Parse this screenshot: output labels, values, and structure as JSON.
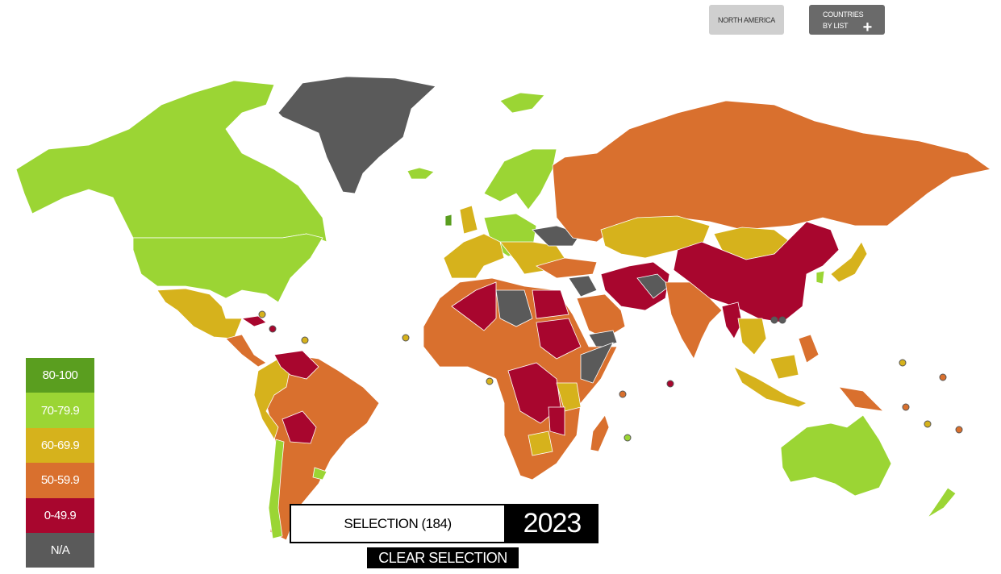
{
  "buttons": {
    "region": "NORTH AMERICA",
    "countries_by_list": [
      "COUNTRIES",
      "BY LIST"
    ]
  },
  "legend": [
    {
      "label": "80-100",
      "color": "#5a9e1f"
    },
    {
      "label": "70-79.9",
      "color": "#9bd534"
    },
    {
      "label": "60-69.9",
      "color": "#d6b21c"
    },
    {
      "label": "50-59.9",
      "color": "#d9702e"
    },
    {
      "label": "0-49.9",
      "color": "#a8062e"
    },
    {
      "label": "N/A",
      "color": "#5a5a5a"
    }
  ],
  "selection": "SELECTION (184)",
  "year": "2023",
  "clear": "CLEAR SELECTION"
}
